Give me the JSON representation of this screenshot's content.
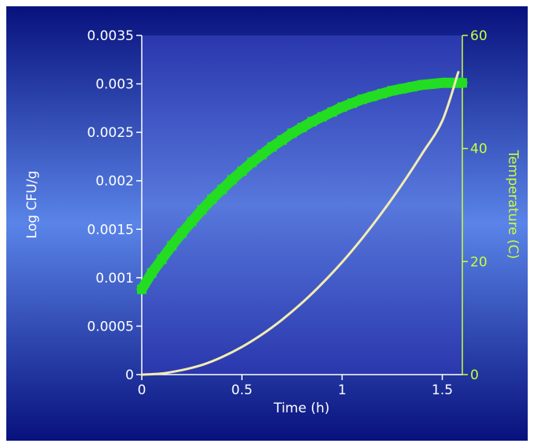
{
  "chart_data": {
    "type": "line",
    "xlabel": "Time (h)",
    "ylabel_left": "Log CFU/g",
    "ylabel_right": "Temperature (C)",
    "xlim": [
      0,
      1.6
    ],
    "ylim_left": [
      0,
      0.0035
    ],
    "ylim_right": [
      0,
      60
    ],
    "x_ticks": [
      0,
      0.5,
      1,
      1.5
    ],
    "x_tick_labels": [
      "0",
      "0.5",
      "1",
      "1.5"
    ],
    "y_left_ticks": [
      0,
      0.0005,
      0.001,
      0.0015,
      0.002,
      0.0025,
      0.003,
      0.0035
    ],
    "y_left_tick_labels": [
      "0",
      "0.0005",
      "0.001",
      "0.0015",
      "0.002",
      "0.0025",
      "0.003",
      "0.0035"
    ],
    "y_right_ticks": [
      0,
      20,
      40,
      60
    ],
    "y_right_tick_labels": [
      "0",
      "20",
      "40",
      "60"
    ],
    "grid": false,
    "legend": "none",
    "series": [
      {
        "axis": "left",
        "style": "thick-markers",
        "color": "#22dd22",
        "x": [
          0,
          0.05,
          0.1,
          0.15,
          0.2,
          0.25,
          0.3,
          0.35,
          0.4,
          0.45,
          0.5,
          0.55,
          0.6,
          0.65,
          0.7,
          0.75,
          0.8,
          0.85,
          0.9,
          0.95,
          1.0,
          1.05,
          1.1,
          1.15,
          1.2,
          1.25,
          1.3,
          1.35,
          1.4,
          1.45,
          1.5,
          1.55,
          1.6
        ],
        "y": [
          0.00088,
          0.00105,
          0.00119,
          0.00133,
          0.00146,
          0.00158,
          0.0017,
          0.00181,
          0.00191,
          0.00201,
          0.0021,
          0.00219,
          0.00227,
          0.00235,
          0.00242,
          0.00249,
          0.00255,
          0.00261,
          0.00266,
          0.00271,
          0.00276,
          0.0028,
          0.00284,
          0.00287,
          0.0029,
          0.00293,
          0.00295,
          0.00297,
          0.00299,
          0.003,
          0.00301,
          0.00301,
          0.00301
        ]
      },
      {
        "axis": "right",
        "style": "line",
        "color": "#f2ecb0",
        "x": [
          0,
          0.1,
          0.2,
          0.3,
          0.4,
          0.5,
          0.6,
          0.7,
          0.8,
          0.9,
          1.0,
          1.1,
          1.2,
          1.3,
          1.4,
          1.5,
          1.58
        ],
        "y": [
          0,
          0.2,
          0.8,
          1.7,
          3.1,
          4.9,
          7.1,
          9.7,
          12.7,
          16.1,
          19.9,
          24.1,
          28.7,
          33.7,
          39.1,
          44.9,
          53.5
        ]
      }
    ],
    "colors": {
      "left_axis": "#ffffff",
      "right_axis": "#c8ff3c",
      "bg_dark": "#08117d",
      "bg_light": "#5a84e8",
      "plot_area": "#3a4fc0"
    }
  }
}
